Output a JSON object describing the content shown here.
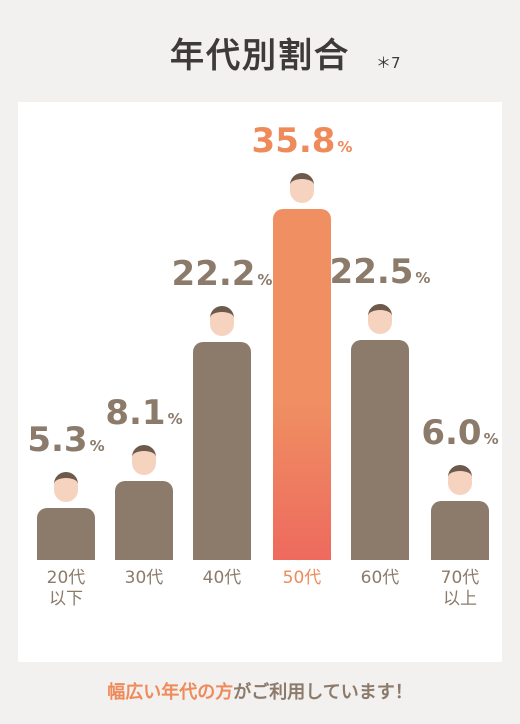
{
  "chart_data": {
    "type": "bar",
    "title": "年代別割合",
    "note": "＊7",
    "categories": [
      "20代\n以下",
      "30代",
      "40代",
      "50代",
      "60代",
      "70代\n以上"
    ],
    "values": [
      5.3,
      8.1,
      22.2,
      35.8,
      22.5,
      6.0
    ],
    "value_labels": [
      "5.3",
      "8.1",
      "22.2",
      "35.8",
      "22.5",
      "6.0"
    ],
    "value_suffix": "%",
    "colors": [
      "#8c7b6b",
      "#8c7b6b",
      "#8c7b6b",
      "#ef8f62",
      "#8c7b6b",
      "#8c7b6b"
    ],
    "footer_highlight": "幅広い年代の方",
    "footer_text": "がご利用しています！"
  }
}
